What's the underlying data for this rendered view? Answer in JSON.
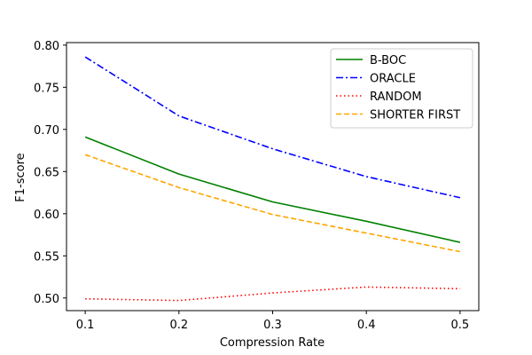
{
  "chart_data": {
    "type": "line",
    "title": "",
    "xlabel": "Compression Rate",
    "ylabel": "F1-score",
    "x": [
      0.1,
      0.2,
      0.3,
      0.4,
      0.5
    ],
    "x_tick_labels": [
      "0.1",
      "0.2",
      "0.3",
      "0.4",
      "0.5"
    ],
    "y_ticks": [
      0.5,
      0.55,
      0.6,
      0.65,
      0.7,
      0.75,
      0.8
    ],
    "y_tick_labels": [
      "0.50",
      "0.55",
      "0.60",
      "0.65",
      "0.70",
      "0.75",
      "0.80"
    ],
    "xlim": [
      0.08,
      0.52
    ],
    "ylim": [
      0.485,
      0.803
    ],
    "grid": false,
    "legend_position": "top-right",
    "series": [
      {
        "name": "B-BOC",
        "color": "#008000",
        "dash": "solid",
        "values": [
          0.691,
          0.647,
          0.614,
          0.591,
          0.566
        ]
      },
      {
        "name": "ORACLE",
        "color": "#0000ff",
        "dash": "dashdot",
        "values": [
          0.786,
          0.716,
          0.677,
          0.644,
          0.619
        ]
      },
      {
        "name": "RANDOM",
        "color": "#ff0000",
        "dash": "dotted",
        "values": [
          0.499,
          0.497,
          0.506,
          0.513,
          0.511
        ]
      },
      {
        "name": "SHORTER FIRST",
        "color": "#ffa500",
        "dash": "dashed",
        "values": [
          0.67,
          0.631,
          0.599,
          0.577,
          0.555
        ]
      }
    ]
  }
}
